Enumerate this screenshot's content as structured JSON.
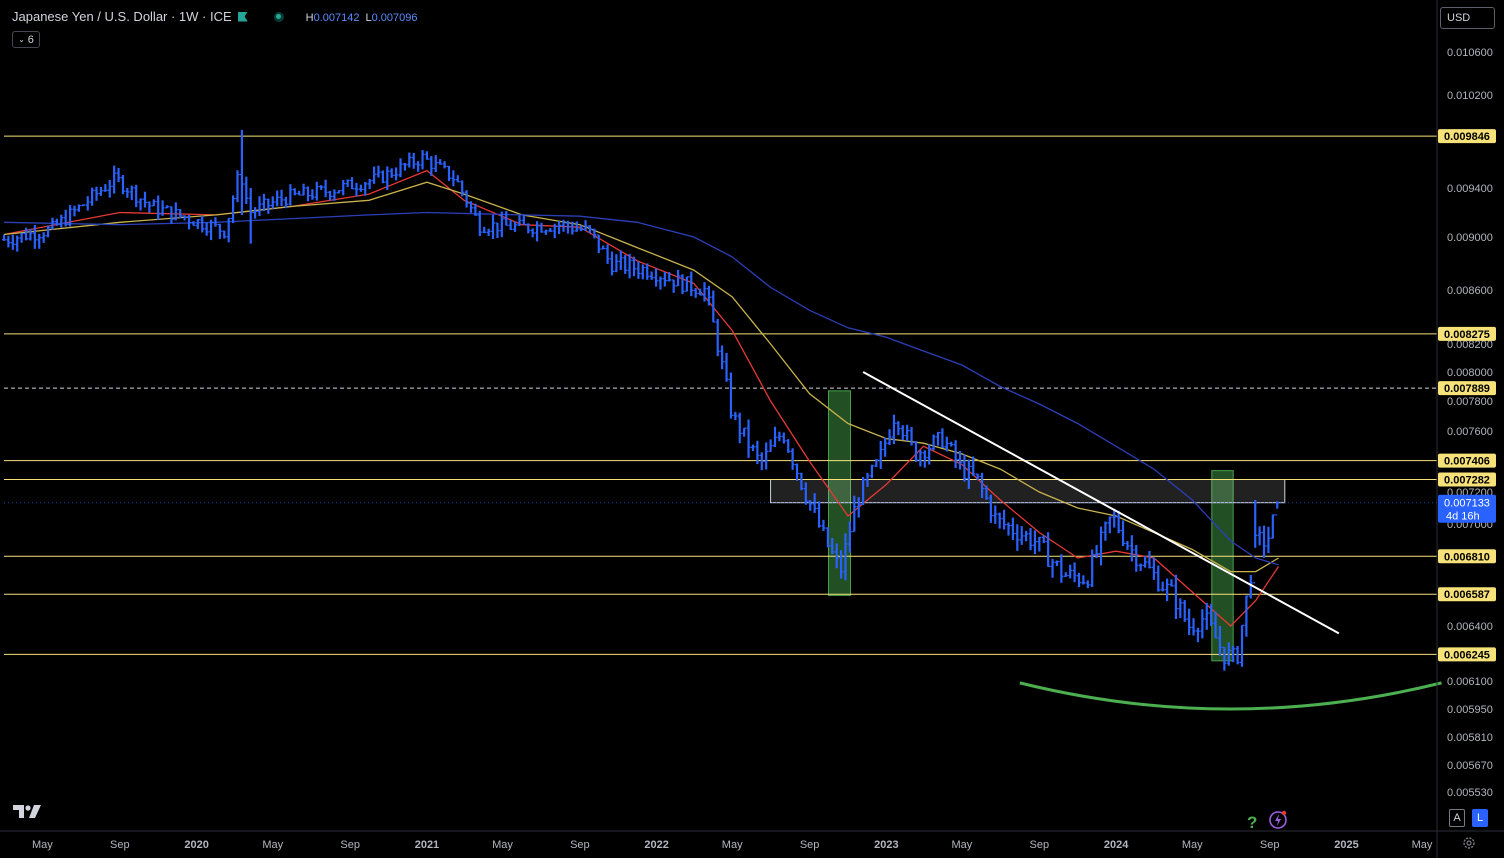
{
  "header": {
    "symbol": "Japanese Yen / U.S. Dollar · 1W · ICE",
    "high_label": "H",
    "high_value": "0.007142",
    "low_label": "L",
    "low_value": "0.007096",
    "indicators_count": "6",
    "currency": "USD"
  },
  "buttons": {
    "auto": "A",
    "log": "L"
  },
  "colors": {
    "background": "#000000",
    "bars": "#2962ff",
    "horizontal_levels": "#f7e27a",
    "ma_fast": "#e53935",
    "ma_mid": "#c7b24b",
    "ma_slow": "#2c3fb8",
    "trendline": "#ffffff",
    "curve": "#4caf50",
    "zone_fill": "#4caf50"
  },
  "icons": [
    "chevron-down-icon",
    "tradingview-logo-icon",
    "help-icon",
    "lightning-icon",
    "settings-icon"
  ],
  "chart_data": {
    "type": "bar",
    "title": "Japanese Yen / U.S. Dollar · 1W · ICE",
    "y_axis": {
      "side": "right",
      "ylim": [
        0.00545,
        0.01075
      ],
      "ticks": [
        "0.010600",
        "0.010200",
        "0.009400",
        "0.009000",
        "0.008600",
        "0.008200",
        "0.008000",
        "0.007800",
        "0.007600",
        "0.007200",
        "0.007000",
        "0.006400",
        "0.006100",
        "0.005950",
        "0.005810",
        "0.005670",
        "0.005530"
      ]
    },
    "x_axis": {
      "ticks": [
        {
          "label": "May",
          "date": "2019-05-01",
          "bold": false
        },
        {
          "label": "Sep",
          "date": "2019-09-01",
          "bold": false
        },
        {
          "label": "2020",
          "date": "2020-01-01",
          "bold": true
        },
        {
          "label": "May",
          "date": "2020-05-01",
          "bold": false
        },
        {
          "label": "Sep",
          "date": "2020-09-01",
          "bold": false
        },
        {
          "label": "2021",
          "date": "2021-01-01",
          "bold": true
        },
        {
          "label": "May",
          "date": "2021-05-01",
          "bold": false
        },
        {
          "label": "Sep",
          "date": "2021-09-01",
          "bold": false
        },
        {
          "label": "2022",
          "date": "2022-01-01",
          "bold": true
        },
        {
          "label": "May",
          "date": "2022-05-01",
          "bold": false
        },
        {
          "label": "Sep",
          "date": "2022-09-01",
          "bold": false
        },
        {
          "label": "2023",
          "date": "2023-01-01",
          "bold": true
        },
        {
          "label": "May",
          "date": "2023-05-01",
          "bold": false
        },
        {
          "label": "Sep",
          "date": "2023-09-01",
          "bold": false
        },
        {
          "label": "2024",
          "date": "2024-01-01",
          "bold": true
        },
        {
          "label": "May",
          "date": "2024-05-01",
          "bold": false
        },
        {
          "label": "Sep",
          "date": "2024-09-01",
          "bold": false
        },
        {
          "label": "2025",
          "date": "2025-01-01",
          "bold": true
        },
        {
          "label": "May",
          "date": "2025-05-01",
          "bold": false
        }
      ]
    },
    "price_anchors": [
      [
        "2019-03-01",
        0.00898
      ],
      [
        "2019-05-15",
        0.00906
      ],
      [
        "2019-07-01",
        0.00925
      ],
      [
        "2019-08-25",
        0.00948
      ],
      [
        "2019-10-20",
        0.00925
      ],
      [
        "2019-12-20",
        0.00915
      ],
      [
        "2020-02-15",
        0.00905
      ],
      [
        "2020-03-10",
        0.00955
      ],
      [
        "2020-03-25",
        0.0092
      ],
      [
        "2020-05-20",
        0.00932
      ],
      [
        "2020-07-30",
        0.00938
      ],
      [
        "2020-10-15",
        0.00948
      ],
      [
        "2020-12-25",
        0.00966
      ],
      [
        "2021-02-15",
        0.00948
      ],
      [
        "2021-03-25",
        0.0091
      ],
      [
        "2021-06-01",
        0.00908
      ],
      [
        "2021-08-01",
        0.0091
      ],
      [
        "2021-09-15",
        0.00905
      ],
      [
        "2021-10-20",
        0.0088
      ],
      [
        "2021-12-20",
        0.00875
      ],
      [
        "2022-02-10",
        0.00865
      ],
      [
        "2022-03-20",
        0.0086
      ],
      [
        "2022-05-01",
        0.0077
      ],
      [
        "2022-06-15",
        0.00738
      ],
      [
        "2022-07-20",
        0.0076
      ],
      [
        "2022-08-20",
        0.00725
      ],
      [
        "2022-09-20",
        0.00695
      ],
      [
        "2022-10-20",
        0.00672
      ],
      [
        "2022-11-15",
        0.00715
      ],
      [
        "2022-12-20",
        0.0074
      ],
      [
        "2023-01-15",
        0.00772
      ],
      [
        "2023-02-15",
        0.00745
      ],
      [
        "2023-04-01",
        0.00755
      ],
      [
        "2023-04-30",
        0.00735
      ],
      [
        "2023-05-25",
        0.00728
      ],
      [
        "2023-06-25",
        0.00702
      ],
      [
        "2023-08-25",
        0.0069
      ],
      [
        "2023-10-10",
        0.0067
      ],
      [
        "2023-11-15",
        0.00668
      ],
      [
        "2023-12-25",
        0.00705
      ],
      [
        "2024-01-25",
        0.00685
      ],
      [
        "2024-03-10",
        0.00666
      ],
      [
        "2024-04-01",
        0.00658
      ],
      [
        "2024-04-25",
        0.0064
      ],
      [
        "2024-05-20",
        0.00645
      ],
      [
        "2024-06-20",
        0.00625
      ],
      [
        "2024-07-10",
        0.00621
      ],
      [
        "2024-07-31",
        0.00666
      ],
      [
        "2024-08-10",
        0.0069
      ],
      [
        "2024-08-28",
        0.0069
      ],
      [
        "2024-09-15",
        0.00713
      ]
    ],
    "price_spikes": [
      {
        "date": "2020-03-10",
        "high": 0.0099,
        "low": 0.00918
      },
      {
        "date": "2020-03-24",
        "high": 0.0094,
        "low": 0.00895
      },
      {
        "date": "2024-08-07",
        "high": 0.00715,
        "low": 0.00686
      }
    ],
    "last_bar": {
      "date": "2024-09-15",
      "value": 0.007133,
      "high": 0.007142,
      "low": 0.007096,
      "countdown": "4d 16h"
    },
    "horizontal_levels": [
      {
        "value": 0.009846,
        "label": "0.009846",
        "style": "solid"
      },
      {
        "value": 0.008275,
        "label": "0.008275",
        "style": "solid"
      },
      {
        "value": 0.007889,
        "label": "0.007889",
        "style": "dashed"
      },
      {
        "value": 0.007406,
        "label": "0.007406",
        "style": "solid"
      },
      {
        "value": 0.007282,
        "label": "0.007282",
        "style": "solid"
      },
      {
        "value": 0.00681,
        "label": "0.006810",
        "style": "solid"
      },
      {
        "value": 0.006587,
        "label": "0.006587",
        "style": "solid"
      },
      {
        "value": 0.006245,
        "label": "0.006245",
        "style": "solid"
      }
    ],
    "current_price_label": "0.007133",
    "countdown_label": "4d 16h",
    "rectangle_zone": {
      "from": "2022-07-01",
      "to": "2024-09-25",
      "top": 0.007282,
      "bottom": 0.007133
    },
    "green_zones": [
      {
        "from": "2022-10-01",
        "to": "2022-11-05",
        "top": 0.00787,
        "bottom": 0.00658
      },
      {
        "from": "2024-06-01",
        "to": "2024-07-05",
        "top": 0.00734,
        "bottom": 0.00621
      }
    ],
    "trendline": {
      "from": [
        "2022-11-25",
        0.008
      ],
      "to": [
        "2024-12-20",
        0.00636
      ]
    },
    "curve": [
      [
        "2023-08-01",
        0.00609
      ],
      [
        "2024-07-01",
        0.00595
      ],
      [
        "2025-06-01",
        0.00609
      ]
    ],
    "moving_averages": [
      {
        "name": "ma_fast",
        "color": "#e53935",
        "points": [
          [
            "2019-03-01",
            0.00902
          ],
          [
            "2019-09-01",
            0.0092
          ],
          [
            "2020-02-01",
            0.00918
          ],
          [
            "2020-06-01",
            0.00925
          ],
          [
            "2020-10-01",
            0.00935
          ],
          [
            "2021-01-01",
            0.00955
          ],
          [
            "2021-03-01",
            0.0093
          ],
          [
            "2021-06-01",
            0.0091
          ],
          [
            "2021-09-01",
            0.00908
          ],
          [
            "2021-12-01",
            0.00882
          ],
          [
            "2022-03-01",
            0.00865
          ],
          [
            "2022-05-01",
            0.0083
          ],
          [
            "2022-07-01",
            0.0078
          ],
          [
            "2022-09-01",
            0.0074
          ],
          [
            "2022-11-01",
            0.00705
          ],
          [
            "2023-01-01",
            0.00725
          ],
          [
            "2023-03-01",
            0.0075
          ],
          [
            "2023-05-01",
            0.00738
          ],
          [
            "2023-07-01",
            0.00715
          ],
          [
            "2023-09-01",
            0.00695
          ],
          [
            "2023-11-01",
            0.0068
          ],
          [
            "2024-01-01",
            0.00684
          ],
          [
            "2024-03-01",
            0.0068
          ],
          [
            "2024-05-01",
            0.0066
          ],
          [
            "2024-07-01",
            0.0064
          ],
          [
            "2024-08-10",
            0.00655
          ],
          [
            "2024-09-15",
            0.00675
          ]
        ]
      },
      {
        "name": "ma_mid",
        "color": "#c7b24b",
        "points": [
          [
            "2019-03-01",
            0.00902
          ],
          [
            "2019-09-01",
            0.00912
          ],
          [
            "2020-02-01",
            0.00918
          ],
          [
            "2020-06-01",
            0.00925
          ],
          [
            "2020-10-01",
            0.0093
          ],
          [
            "2021-01-01",
            0.00945
          ],
          [
            "2021-03-01",
            0.00935
          ],
          [
            "2021-06-01",
            0.00918
          ],
          [
            "2021-09-01",
            0.0091
          ],
          [
            "2021-12-01",
            0.00892
          ],
          [
            "2022-03-01",
            0.00875
          ],
          [
            "2022-05-01",
            0.00855
          ],
          [
            "2022-07-01",
            0.0082
          ],
          [
            "2022-09-01",
            0.00785
          ],
          [
            "2022-11-01",
            0.00765
          ],
          [
            "2023-01-01",
            0.00755
          ],
          [
            "2023-03-01",
            0.00752
          ],
          [
            "2023-05-01",
            0.00745
          ],
          [
            "2023-07-01",
            0.00735
          ],
          [
            "2023-09-01",
            0.0072
          ],
          [
            "2023-11-01",
            0.0071
          ],
          [
            "2024-01-01",
            0.00705
          ],
          [
            "2024-03-01",
            0.00695
          ],
          [
            "2024-05-01",
            0.00685
          ],
          [
            "2024-07-01",
            0.00672
          ],
          [
            "2024-08-10",
            0.00672
          ],
          [
            "2024-09-15",
            0.0068
          ]
        ]
      },
      {
        "name": "ma_slow",
        "color": "#2c3fb8",
        "points": [
          [
            "2019-03-01",
            0.00912
          ],
          [
            "2019-09-01",
            0.0091
          ],
          [
            "2020-02-01",
            0.00912
          ],
          [
            "2020-06-01",
            0.00915
          ],
          [
            "2020-10-01",
            0.00918
          ],
          [
            "2021-01-01",
            0.0092
          ],
          [
            "2021-06-01",
            0.00918
          ],
          [
            "2021-09-01",
            0.00917
          ],
          [
            "2021-12-01",
            0.00912
          ],
          [
            "2022-03-01",
            0.009
          ],
          [
            "2022-05-01",
            0.00885
          ],
          [
            "2022-07-01",
            0.00862
          ],
          [
            "2022-09-01",
            0.00845
          ],
          [
            "2022-11-01",
            0.00832
          ],
          [
            "2023-01-01",
            0.00825
          ],
          [
            "2023-03-01",
            0.00815
          ],
          [
            "2023-05-01",
            0.00805
          ],
          [
            "2023-07-01",
            0.0079
          ],
          [
            "2023-09-01",
            0.00778
          ],
          [
            "2023-11-01",
            0.00765
          ],
          [
            "2024-01-01",
            0.0075
          ],
          [
            "2024-03-01",
            0.00735
          ],
          [
            "2024-05-01",
            0.00715
          ],
          [
            "2024-07-01",
            0.0069
          ],
          [
            "2024-08-10",
            0.0068
          ],
          [
            "2024-09-15",
            0.00676
          ]
        ]
      }
    ]
  }
}
